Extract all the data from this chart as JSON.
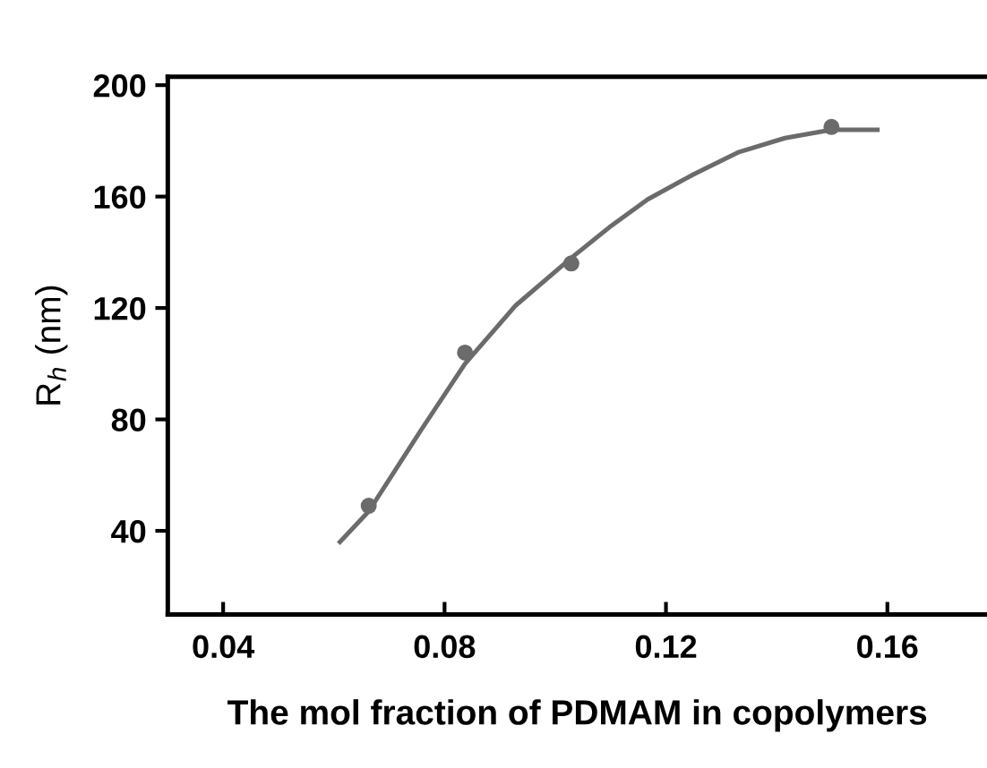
{
  "chart_data": {
    "type": "scatter",
    "xlabel": "The mol fraction of PDMAM in copolymers",
    "ylabel": "R$_{h}$ (nm)",
    "xlim": [
      0.03,
      0.178
    ],
    "ylim": [
      10,
      203
    ],
    "xticks": [
      0.04,
      0.08,
      0.12,
      0.16
    ],
    "yticks": [
      40,
      80,
      120,
      160,
      200
    ],
    "grid": false,
    "legend": false,
    "series": [
      {
        "color": "#6b6b6b",
        "marker": "circle",
        "x": [
          0.0663,
          0.0837,
          0.1029,
          0.1499
        ],
        "values": [
          49,
          104,
          136,
          185
        ]
      },
      {
        "type": "line",
        "color": "#6b6b6b",
        "marker": "none",
        "line_style": "solid",
        "x": [
          0.0611,
          0.0663,
          0.0757,
          0.0837,
          0.0929,
          0.1029,
          0.1098,
          0.1167,
          0.125,
          0.1332,
          0.1415,
          0.1499,
          0.1582
        ],
        "values": [
          36,
          47,
          76,
          100,
          121,
          138,
          149,
          159,
          168,
          176,
          181,
          184,
          184
        ]
      }
    ]
  }
}
